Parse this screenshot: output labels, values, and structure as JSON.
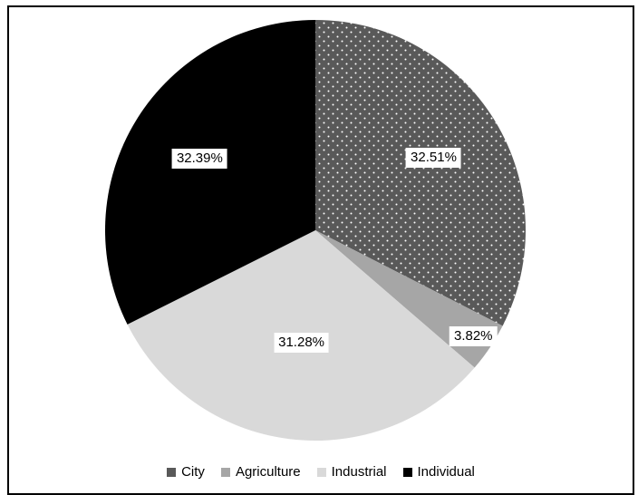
{
  "chart_data": {
    "type": "pie",
    "categories": [
      "City",
      "Agriculture",
      "Industrial",
      "Individual"
    ],
    "values": [
      32.51,
      3.82,
      31.28,
      32.39
    ],
    "data_labels": [
      "32.51%",
      "3.82%",
      "31.28%",
      "32.39%"
    ],
    "start_angle_deg": 0,
    "direction": "clockwise",
    "legend_position": "bottom",
    "colors": [
      "#595959",
      "#a6a6a6",
      "#d9d9d9",
      "#000000"
    ],
    "patterns": [
      "dotted",
      "solid",
      "solid",
      "solid"
    ]
  }
}
